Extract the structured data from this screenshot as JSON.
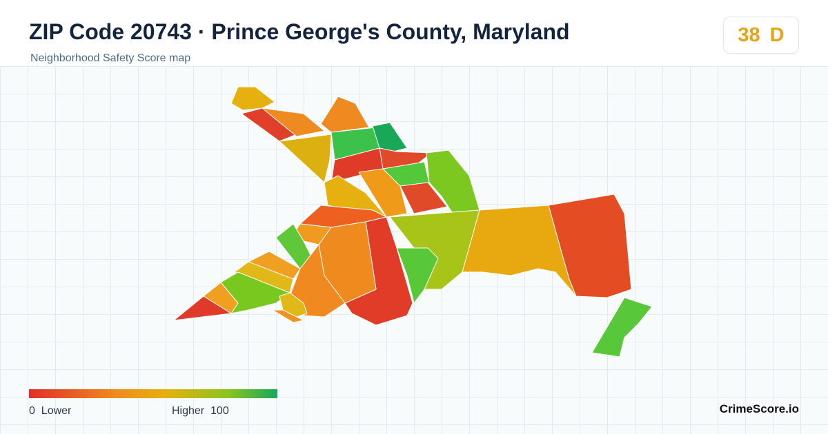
{
  "header": {
    "title": "ZIP Code 20743 · Prince George's County, Maryland",
    "subtitle": "Neighborhood Safety Score map"
  },
  "badge": {
    "score": 38,
    "grade": "D"
  },
  "legend": {
    "min": 0,
    "min_label": "Lower",
    "max_label": "Higher",
    "max": 100
  },
  "footer": {
    "brand": "CrimeScore.io"
  }
}
